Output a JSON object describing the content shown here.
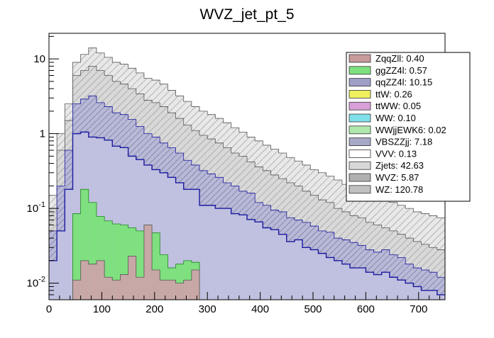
{
  "chart_data": {
    "type": "bar",
    "title": "WVZ_jet_pt_5",
    "xlabel": "",
    "ylabel": "",
    "xlim": [
      0,
      750
    ],
    "ylim": [
      0.006,
      22
    ],
    "yscale": "log",
    "bin_width": 15,
    "x_ticks": [
      "0",
      "100",
      "200",
      "300",
      "400",
      "500",
      "600",
      "700"
    ],
    "x_tick_values": [
      0,
      100,
      200,
      300,
      400,
      500,
      600,
      700
    ],
    "y_ticks": [
      "10",
      "1",
      "10^-1",
      "10^-2"
    ],
    "y_tick_values": [
      10,
      1,
      0.1,
      0.01
    ],
    "legend_position": "top-right",
    "stack_levels": [
      {
        "name": "ZqqZll + ggZZ4l",
        "fill": "#c8a7a7",
        "values": [
          0,
          0,
          0,
          0.011,
          0.02,
          0.018,
          0.02,
          0.012,
          0.011,
          0.013,
          0.023,
          0.012,
          0.06,
          0.015,
          0.011,
          0.011,
          0.01,
          0.011,
          0.015,
          0,
          0,
          0,
          0,
          0,
          0,
          0,
          0,
          0,
          0,
          0,
          0,
          0,
          0,
          0,
          0,
          0,
          0,
          0,
          0,
          0,
          0,
          0,
          0,
          0,
          0,
          0,
          0,
          0,
          0,
          0
        ]
      },
      {
        "name": "ggZZ4l",
        "fill": "#7fe07f",
        "values": [
          0,
          0,
          0,
          0.085,
          0.18,
          0.12,
          0.078,
          0.068,
          0.062,
          0.06,
          0.055,
          0.05,
          0.06,
          0.047,
          0.024,
          0.016,
          0.018,
          0.02,
          0.019,
          0,
          0,
          0,
          0,
          0,
          0,
          0,
          0,
          0,
          0,
          0,
          0,
          0,
          0,
          0,
          0,
          0,
          0,
          0,
          0,
          0,
          0,
          0,
          0,
          0,
          0,
          0,
          0,
          0,
          0,
          0
        ]
      },
      {
        "name": "qqZZ4l",
        "fill": "#c0c0e0",
        "values": [
          0.02,
          0.05,
          0.18,
          1.0,
          1.05,
          0.9,
          0.88,
          0.82,
          0.68,
          0.65,
          0.5,
          0.45,
          0.38,
          0.33,
          0.3,
          0.26,
          0.22,
          0.18,
          0.18,
          0.11,
          0.11,
          0.1,
          0.1,
          0.085,
          0.082,
          0.071,
          0.066,
          0.055,
          0.052,
          0.045,
          0.036,
          0.038,
          0.03,
          0.028,
          0.025,
          0.022,
          0.02,
          0.018,
          0.016,
          0.016,
          0.014,
          0.013,
          0.014,
          0.012,
          0.011,
          0.01,
          0.009,
          0.008,
          0.008,
          0.007
        ]
      },
      {
        "name": "VBSZZjj",
        "fill": "#b8b8d8",
        "values": [
          0.05,
          0.2,
          0.6,
          2.5,
          2.9,
          3.2,
          2.6,
          2.3,
          1.9,
          1.8,
          1.55,
          1.25,
          1.0,
          0.9,
          0.75,
          0.65,
          0.55,
          0.44,
          0.38,
          0.32,
          0.29,
          0.26,
          0.22,
          0.2,
          0.17,
          0.16,
          0.12,
          0.11,
          0.095,
          0.09,
          0.075,
          0.07,
          0.065,
          0.058,
          0.05,
          0.048,
          0.04,
          0.038,
          0.035,
          0.032,
          0.028,
          0.026,
          0.028,
          0.024,
          0.022,
          0.018,
          0.016,
          0.015,
          0.014,
          0.012
        ]
      },
      {
        "name": "Zjets",
        "fill": "#d8d8d8",
        "values": [
          0.1,
          0.6,
          1.5,
          6.0,
          7.0,
          8.0,
          7.0,
          6.0,
          5.0,
          4.6,
          4.0,
          3.4,
          2.8,
          2.6,
          2.3,
          1.9,
          1.6,
          1.3,
          1.1,
          0.95,
          0.85,
          0.75,
          0.65,
          0.55,
          0.5,
          0.42,
          0.36,
          0.32,
          0.28,
          0.25,
          0.22,
          0.2,
          0.17,
          0.15,
          0.13,
          0.12,
          0.1,
          0.09,
          0.08,
          0.075,
          0.065,
          0.06,
          0.055,
          0.05,
          0.045,
          0.04,
          0.036,
          0.033,
          0.03,
          0.028
        ]
      },
      {
        "name": "WZ (total)",
        "fill": "#e8e8e8",
        "values": [
          0.15,
          1.0,
          2.5,
          9.0,
          11.5,
          14.0,
          12.0,
          10.5,
          9.0,
          8.5,
          7.5,
          6.5,
          5.5,
          5.2,
          4.6,
          3.8,
          3.2,
          2.7,
          2.3,
          2.0,
          1.8,
          1.6,
          1.4,
          1.2,
          1.05,
          0.9,
          0.8,
          0.7,
          0.62,
          0.55,
          0.48,
          0.43,
          0.38,
          0.33,
          0.3,
          0.27,
          0.24,
          0.21,
          0.19,
          0.17,
          0.15,
          0.14,
          0.13,
          0.12,
          0.11,
          0.1,
          0.09,
          0.085,
          0.08,
          0.075
        ]
      }
    ],
    "legend": [
      {
        "label": "ZqqZll: 0.40",
        "color": "#c89a9a"
      },
      {
        "label": "ggZZ4l: 0.57",
        "color": "#7fe07f"
      },
      {
        "label": "qqZZ4l: 10.15",
        "color": "#9f9fc8"
      },
      {
        "label": "ttW: 0.26",
        "color": "#f0f060"
      },
      {
        "label": "ttWW: 0.05",
        "color": "#d8a0d8"
      },
      {
        "label": "WW: 0.10",
        "color": "#80e0e8"
      },
      {
        "label": "WWjjEWK6: 0.02",
        "color": "#b0e8b0"
      },
      {
        "label": "VBSZZjj: 7.18",
        "color": "#a8a8c8"
      },
      {
        "label": "VVV: 0.13",
        "color": "#ffffff"
      },
      {
        "label": "Zjets: 42.63",
        "color": "#d8d8d8"
      },
      {
        "label": "WVZ: 5.87",
        "color": "#b0b0b0"
      },
      {
        "label": "WZ: 120.78",
        "color": "#c0c0c0"
      }
    ]
  }
}
